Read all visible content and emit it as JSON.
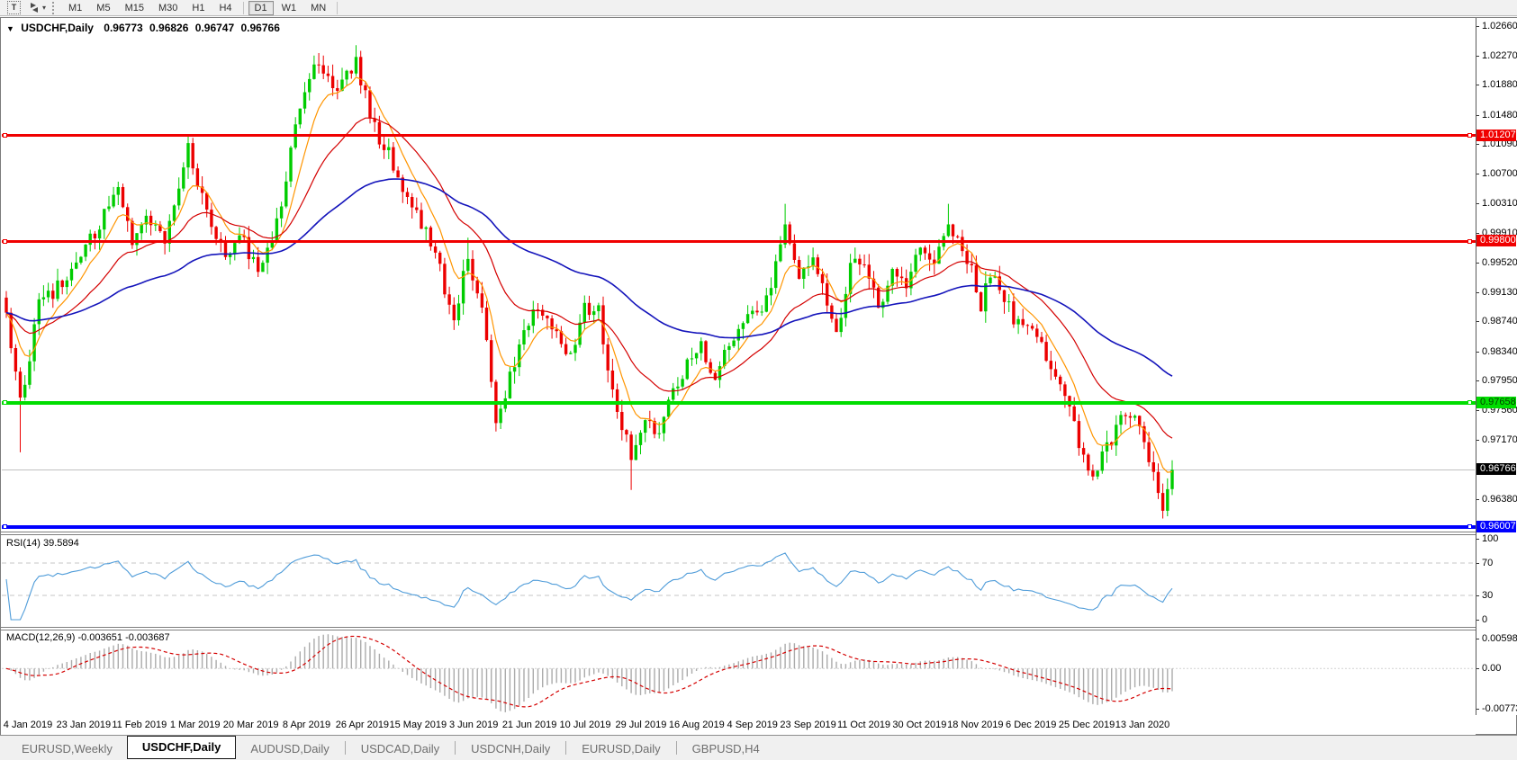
{
  "toolbar": {
    "text_tool_label": "T",
    "timeframes": [
      "M1",
      "M5",
      "M15",
      "M30",
      "H1",
      "H4",
      "D1",
      "W1",
      "MN"
    ],
    "active_timeframe": "D1"
  },
  "chart": {
    "title_line": {
      "symbol": "USDCHF,Daily",
      "open": "0.96773",
      "high": "0.96826",
      "low": "0.96747",
      "close": "0.96766"
    },
    "price_axis_ticks": [
      "1.02660",
      "1.02270",
      "1.01880",
      "1.01480",
      "1.01090",
      "1.00700",
      "1.00310",
      "0.99910",
      "0.99520",
      "0.99130",
      "0.98740",
      "0.98340",
      "0.97950",
      "0.97560",
      "0.97170",
      "0.96380"
    ],
    "hlines": [
      {
        "label": "1.01207",
        "value": 1.01207,
        "color": "#f00000",
        "fg": "#ffffff",
        "thick": 3
      },
      {
        "label": "0.99800",
        "value": 0.998,
        "color": "#f00000",
        "fg": "#ffffff",
        "thick": 3
      },
      {
        "label": "0.97658",
        "value": 0.97658,
        "color": "#00dd00",
        "fg": "#004000",
        "thick": 4
      },
      {
        "label": "0.96007",
        "value": 0.96007,
        "color": "#0000ff",
        "fg": "#ffffff",
        "thick": 4
      }
    ],
    "current_price": {
      "label": "0.96766",
      "value": 0.96766,
      "line_color": "#c0c0c0",
      "box_bg": "#000000",
      "box_fg": "#ffffff"
    },
    "candles": {
      "count": 251,
      "seed": 12,
      "noise": 0.0011,
      "wick": 0.0016,
      "anchors": [
        [
          0,
          0.989
        ],
        [
          3,
          0.9763
        ],
        [
          7,
          0.99
        ],
        [
          13,
          0.9928
        ],
        [
          20,
          1.0
        ],
        [
          24,
          1.0058
        ],
        [
          27,
          0.9985
        ],
        [
          30,
          1.0018
        ],
        [
          34,
          0.9982
        ],
        [
          39,
          1.0105
        ],
        [
          43,
          1.0022
        ],
        [
          47,
          0.9962
        ],
        [
          50,
          0.999
        ],
        [
          54,
          0.9942
        ],
        [
          58,
          1.0005
        ],
        [
          62,
          1.0135
        ],
        [
          66,
          1.0225
        ],
        [
          70,
          1.0178
        ],
        [
          75,
          1.0215
        ],
        [
          79,
          1.013
        ],
        [
          82,
          1.0095
        ],
        [
          85,
          1.005
        ],
        [
          89,
          1.0005
        ],
        [
          93,
          0.994
        ],
        [
          96,
          0.9875
        ],
        [
          99,
          0.9962
        ],
        [
          102,
          0.989
        ],
        [
          105,
          0.9745
        ],
        [
          108,
          0.98
        ],
        [
          111,
          0.9865
        ],
        [
          114,
          0.9895
        ],
        [
          118,
          0.9855
        ],
        [
          121,
          0.983
        ],
        [
          124,
          0.9895
        ],
        [
          127,
          0.9885
        ],
        [
          131,
          0.9745
        ],
        [
          134,
          0.97
        ],
        [
          137,
          0.9752
        ],
        [
          140,
          0.9722
        ],
        [
          143,
          0.9785
        ],
        [
          146,
          0.982
        ],
        [
          149,
          0.9842
        ],
        [
          152,
          0.98
        ],
        [
          155,
          0.985
        ],
        [
          159,
          0.988
        ],
        [
          162,
          0.9885
        ],
        [
          165,
          0.9945
        ],
        [
          167,
          0.9998
        ],
        [
          170,
          0.994
        ],
        [
          173,
          0.9962
        ],
        [
          176,
          0.9895
        ],
        [
          178,
          0.985
        ],
        [
          181,
          0.9945
        ],
        [
          184,
          0.996
        ],
        [
          187,
          0.9892
        ],
        [
          190,
          0.994
        ],
        [
          193,
          0.9918
        ],
        [
          196,
          0.9972
        ],
        [
          199,
          0.995
        ],
        [
          202,
          1.0
        ],
        [
          204,
          0.999
        ],
        [
          207,
          0.994
        ],
        [
          209,
          0.9895
        ],
        [
          211,
          0.9935
        ],
        [
          214,
          0.99
        ],
        [
          217,
          0.987
        ],
        [
          220,
          0.987
        ],
        [
          223,
          0.982
        ],
        [
          226,
          0.98
        ],
        [
          228,
          0.977
        ],
        [
          231,
          0.969
        ],
        [
          233,
          0.966
        ],
        [
          235,
          0.97
        ],
        [
          237,
          0.972
        ],
        [
          239,
          0.9745
        ],
        [
          241,
          0.9755
        ],
        [
          243,
          0.973
        ],
        [
          245,
          0.969
        ],
        [
          247,
          0.9645
        ],
        [
          248,
          0.962
        ],
        [
          250,
          0.96766
        ]
      ],
      "wick_overrides": [
        {
          "bar": 3,
          "low": 0.97
        },
        {
          "bar": 99,
          "high": 0.9985
        },
        {
          "bar": 134,
          "low": 0.965
        },
        {
          "bar": 167,
          "high": 1.003
        },
        {
          "bar": 202,
          "high": 1.003
        },
        {
          "bar": 248,
          "low": 0.9612
        }
      ],
      "up_color": "#00cc00",
      "down_color": "#ec0000"
    },
    "moving_averages": [
      {
        "name": "ma-fast",
        "period": 8,
        "color": "#ff9500"
      },
      {
        "name": "ma-mid",
        "period": 24,
        "color": "#d40000"
      },
      {
        "name": "ma-slow",
        "period": 70,
        "color": "#1414bb"
      }
    ]
  },
  "rsi": {
    "label": "RSI(14) 39.5894",
    "period": 14,
    "color": "#4f9cd9",
    "levels": [
      "100",
      "70",
      "30",
      "0"
    ],
    "level_values": [
      100,
      70,
      30,
      0
    ],
    "dashed_levels": [
      70,
      30
    ]
  },
  "macd": {
    "label": "MACD(12,26,9) -0.003651 -0.003687",
    "fast": 12,
    "slow": 26,
    "signal": 9,
    "hist_color": "#ababab",
    "signal_color": "#d40000",
    "scale_top": "0.005986",
    "scale_zero": "0.00",
    "scale_bottom": "-0.007737",
    "scale_top_value": 0.005986,
    "scale_bottom_value": -0.007737
  },
  "dates": [
    "4 Jan 2019",
    "23 Jan 2019",
    "11 Feb 2019",
    "1 Mar 2019",
    "20 Mar 2019",
    "8 Apr 2019",
    "26 Apr 2019",
    "15 May 2019",
    "3 Jun 2019",
    "21 Jun 2019",
    "10 Jul 2019",
    "29 Jul 2019",
    "16 Aug 2019",
    "4 Sep 2019",
    "23 Sep 2019",
    "11 Oct 2019",
    "30 Oct 2019",
    "18 Nov 2019",
    "6 Dec 2019",
    "25 Dec 2019",
    "13 Jan 2020"
  ],
  "tabs": [
    {
      "label": "EURUSD,Weekly",
      "active": false
    },
    {
      "label": "USDCHF,Daily",
      "active": true
    },
    {
      "label": "AUDUSD,Daily",
      "active": false
    },
    {
      "label": "USDCAD,Daily",
      "active": false
    },
    {
      "label": "USDCNH,Daily",
      "active": false
    },
    {
      "label": "EURUSD,Daily",
      "active": false
    },
    {
      "label": "GBPUSD,H4",
      "active": false
    }
  ]
}
